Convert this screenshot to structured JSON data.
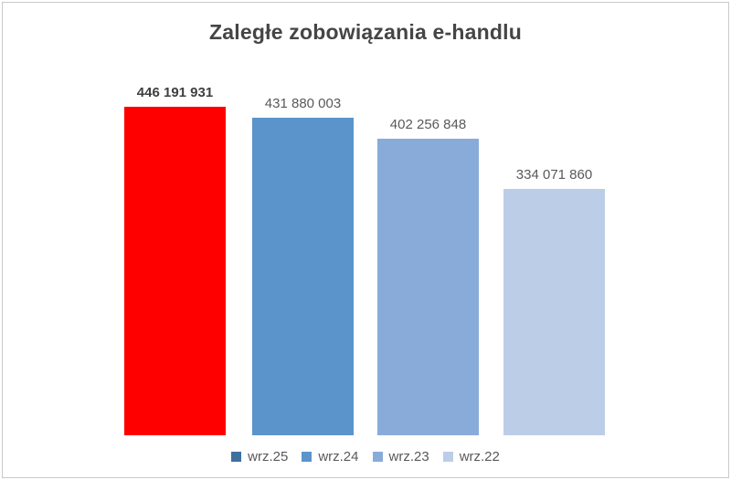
{
  "window": {
    "background": "#ffffff",
    "border_color": "#c9c9c9"
  },
  "chart_data": {
    "type": "bar",
    "title": "Zaległe zobowiązania e-handlu",
    "categories": [
      "wrz.25",
      "wrz.24",
      "wrz.23",
      "wrz.22"
    ],
    "values": [
      446191931,
      431880003,
      402256848,
      334071860
    ],
    "value_labels": [
      "446 191 931",
      "431 880 003",
      "402 256 848",
      "334 071 860"
    ],
    "bar_colors": [
      "#fe0000",
      "#5b94cb",
      "#89abd9",
      "#bccde8"
    ],
    "legend_colors": [
      "#3d6f9f",
      "#5b94cb",
      "#89abd9",
      "#bccde8"
    ],
    "legend_entries": [
      "wrz.25",
      "wrz.24",
      "wrz.23",
      "wrz.22"
    ],
    "legend_position": "bottom",
    "xlabel": "",
    "ylabel": "",
    "ylim": [
      0,
      446191931
    ],
    "grid": false,
    "axes_visible": false,
    "highlighted_bar_index": 0,
    "title_color": "#454545",
    "value_label_bold_color": "#3f3f3f",
    "value_label_color": "#595959",
    "legend_text_color": "#595959"
  }
}
